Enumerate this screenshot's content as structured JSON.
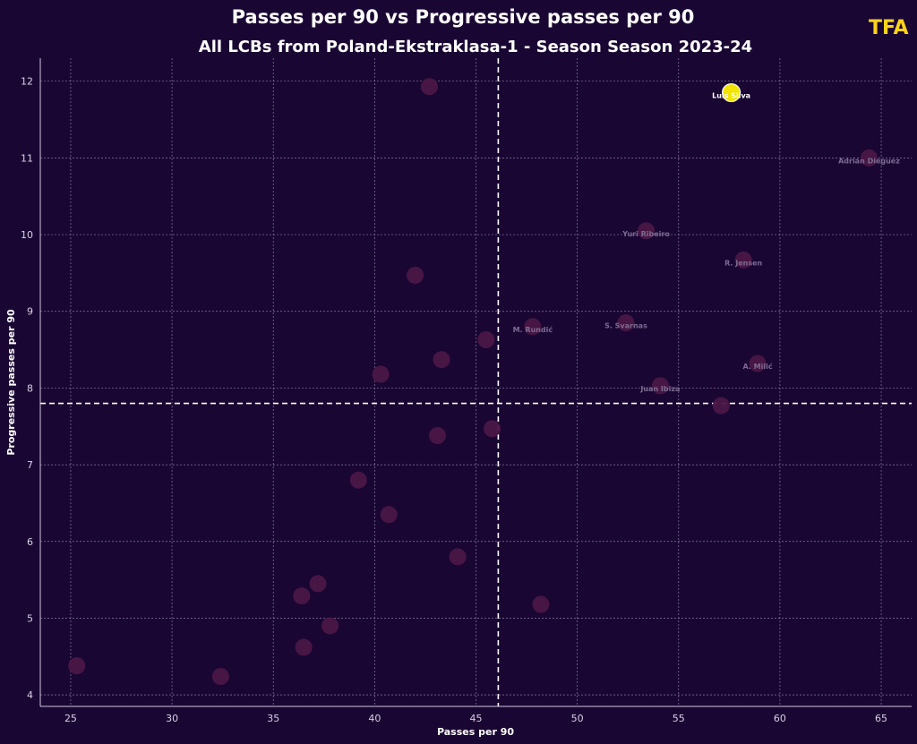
{
  "chart_data": {
    "type": "scatter",
    "title": "Passes per 90 vs Progressive passes per 90",
    "subtitle": "All LCBs from Poland-Ekstraklasa-1 - Season Season 2023-24",
    "xlabel": "Passes per 90",
    "ylabel": "Progressive passes per 90",
    "xlim": [
      23.5,
      66.5
    ],
    "ylim": [
      3.85,
      12.3
    ],
    "xticks": [
      25,
      30,
      35,
      40,
      45,
      50,
      55,
      60,
      65
    ],
    "yticks": [
      4,
      5,
      6,
      7,
      8,
      9,
      10,
      11,
      12
    ],
    "grid": true,
    "x_average": 46.1,
    "y_average": 7.8,
    "highlight_color": "#f2e300",
    "point_color": "#4a1747",
    "points": [
      {
        "x": 57.6,
        "y": 11.85,
        "label": "Luis Silva",
        "highlight": true
      },
      {
        "x": 64.4,
        "y": 11.0,
        "label": "Adrián Diéguez"
      },
      {
        "x": 53.4,
        "y": 10.05,
        "label": "Yuri Ribeiro"
      },
      {
        "x": 58.2,
        "y": 9.67,
        "label": "R. Jensen"
      },
      {
        "x": 47.8,
        "y": 8.8,
        "label": "M. Rundić"
      },
      {
        "x": 52.4,
        "y": 8.85,
        "label": "S. Svarnas"
      },
      {
        "x": 58.9,
        "y": 8.32,
        "label": "A. Milić"
      },
      {
        "x": 54.1,
        "y": 8.03,
        "label": "Juan Ibiza"
      },
      {
        "x": 57.1,
        "y": 7.77,
        "label": ""
      },
      {
        "x": 42.7,
        "y": 11.93,
        "label": ""
      },
      {
        "x": 42.0,
        "y": 9.47,
        "label": ""
      },
      {
        "x": 45.5,
        "y": 8.63,
        "label": ""
      },
      {
        "x": 43.3,
        "y": 8.37,
        "label": ""
      },
      {
        "x": 40.3,
        "y": 8.18,
        "label": ""
      },
      {
        "x": 45.8,
        "y": 7.47,
        "label": ""
      },
      {
        "x": 43.1,
        "y": 7.38,
        "label": ""
      },
      {
        "x": 39.2,
        "y": 6.8,
        "label": ""
      },
      {
        "x": 40.7,
        "y": 6.35,
        "label": ""
      },
      {
        "x": 44.1,
        "y": 5.8,
        "label": ""
      },
      {
        "x": 37.2,
        "y": 5.45,
        "label": ""
      },
      {
        "x": 36.4,
        "y": 5.29,
        "label": ""
      },
      {
        "x": 48.2,
        "y": 5.18,
        "label": ""
      },
      {
        "x": 37.8,
        "y": 4.9,
        "label": ""
      },
      {
        "x": 36.5,
        "y": 4.62,
        "label": ""
      },
      {
        "x": 25.3,
        "y": 4.38,
        "label": ""
      },
      {
        "x": 32.4,
        "y": 4.24,
        "label": ""
      }
    ]
  },
  "logo": {
    "text": "TFA",
    "color": "#ffd21a"
  }
}
